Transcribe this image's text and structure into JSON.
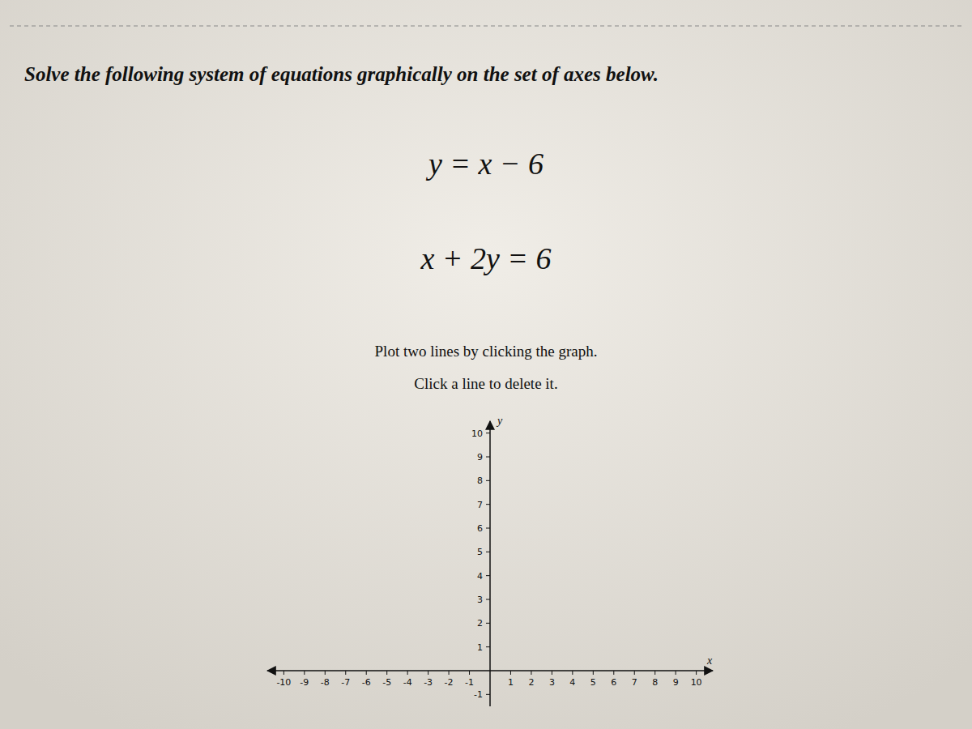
{
  "chart_data": {
    "type": "line",
    "title": "Solve the following system of equations graphically on the set of axes below.",
    "annotations": [
      "y = x − 6",
      "x + 2y = 6",
      "Plot two lines by clicking the graph.",
      "Click a line to delete it."
    ],
    "x_label": "x",
    "y_label": "y",
    "xlim": [
      -10.8,
      10.8
    ],
    "ylim": [
      -1.5,
      10.5
    ],
    "xticks": [
      -10,
      -9,
      -8,
      -7,
      -6,
      -5,
      -4,
      -3,
      -2,
      -1,
      1,
      2,
      3,
      4,
      5,
      6,
      7,
      8,
      9,
      10
    ],
    "yticks": [
      -1,
      1,
      2,
      3,
      4,
      5,
      6,
      7,
      8,
      9,
      10
    ],
    "color": "#111111",
    "grid": false,
    "series": []
  }
}
